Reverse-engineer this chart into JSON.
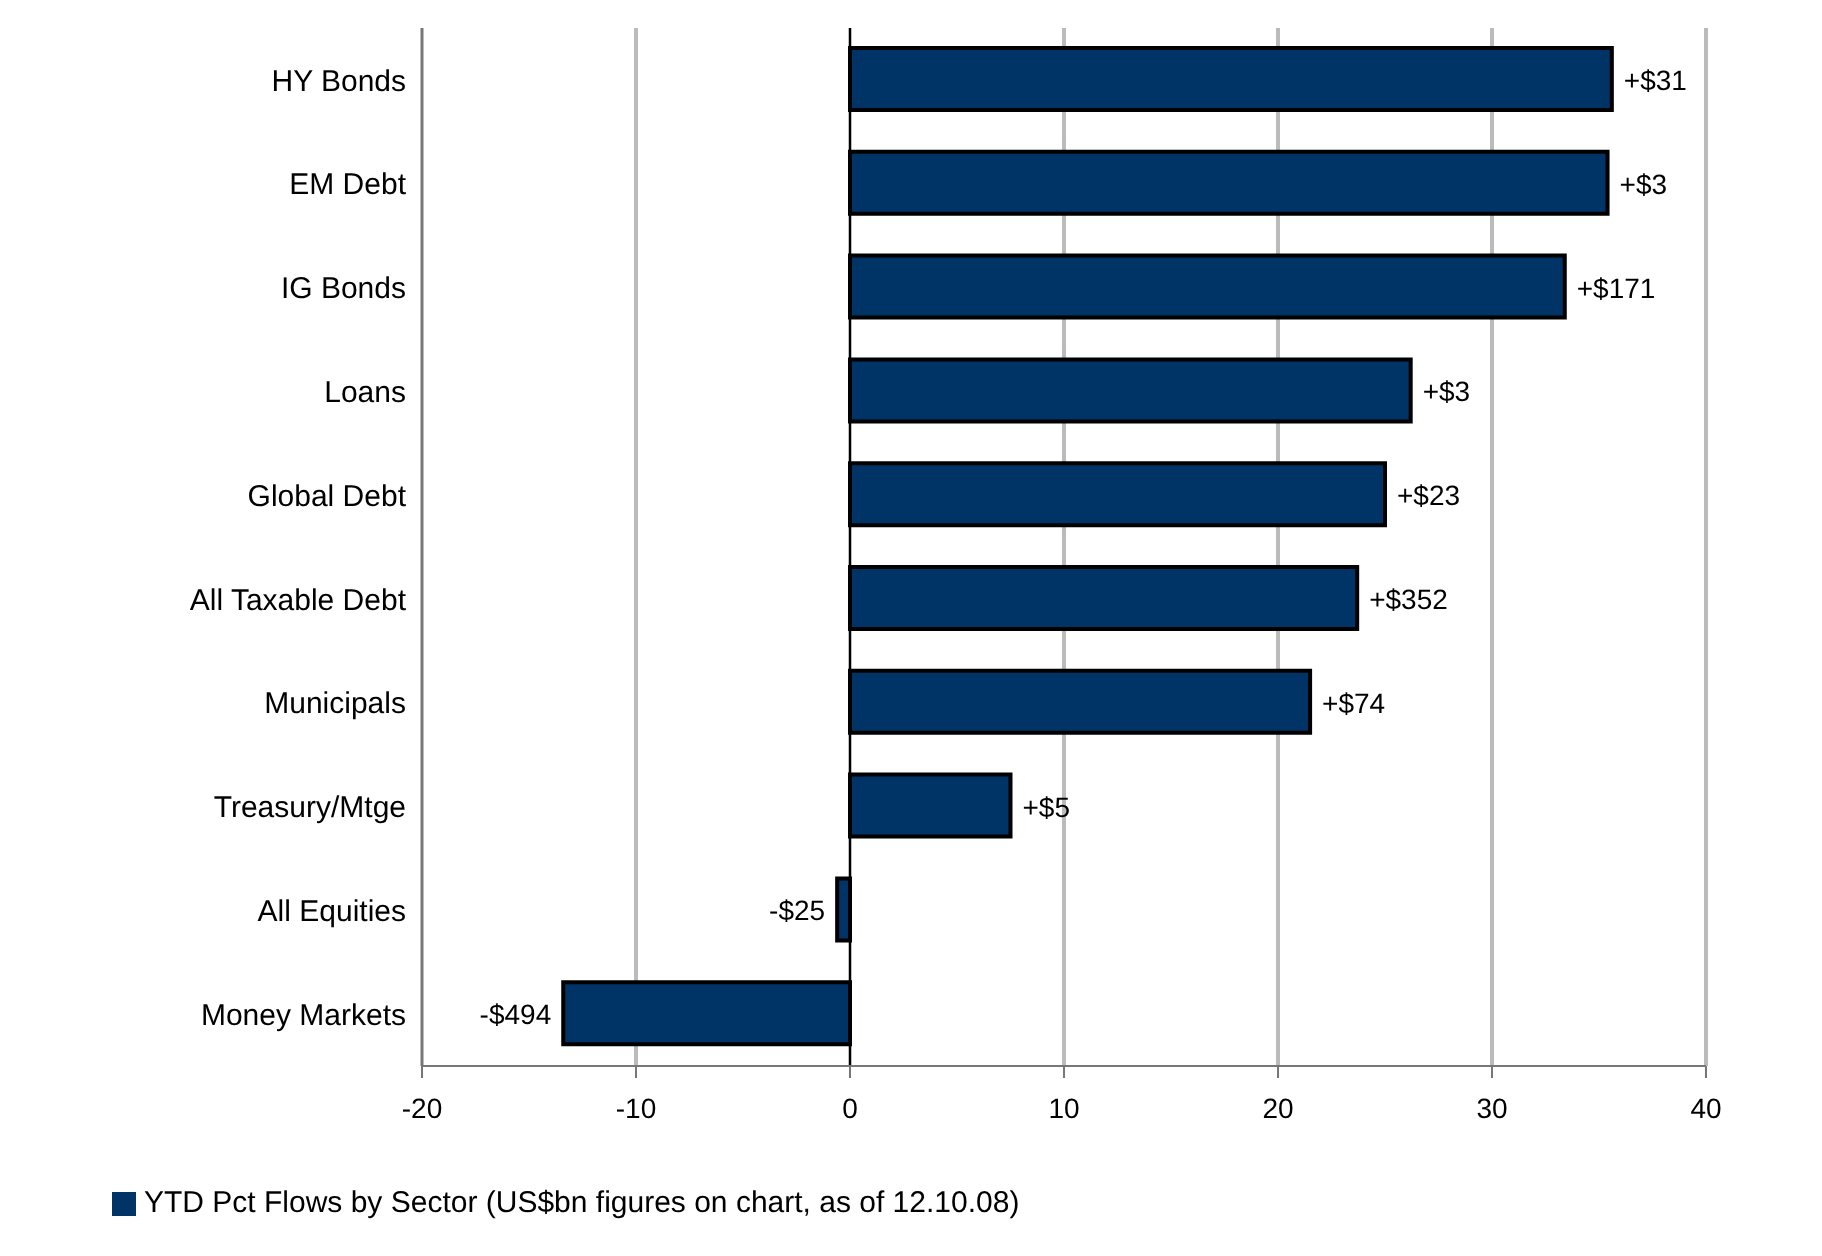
{
  "chart_data": {
    "type": "bar",
    "orientation": "horizontal",
    "categories": [
      "HY Bonds",
      "EM Debt",
      "IG Bonds",
      "Loans",
      "Global Debt",
      "All Taxable Debt",
      "Municipals",
      "Treasury/Mtge",
      "All Equities",
      "Money Markets"
    ],
    "series": [
      {
        "name": "YTD Pct Flows by Sector (US$bn figures on chart, as of 12.10.08)",
        "color": "#003366",
        "values": [
          35.6,
          35.4,
          33.4,
          26.2,
          25.0,
          23.7,
          21.5,
          7.5,
          -0.6,
          -13.4
        ]
      }
    ],
    "annotations": [
      {
        "text": "+$31",
        "x": 35.6,
        "y": "HY Bonds"
      },
      {
        "text": "+$3",
        "x": 35.4,
        "y": "EM Debt"
      },
      {
        "text": "+$171",
        "x": 33.4,
        "y": "IG Bonds"
      },
      {
        "text": "+$3",
        "x": 26.2,
        "y": "Loans"
      },
      {
        "text": "+$23",
        "x": 25.0,
        "y": "Global Debt"
      },
      {
        "text": "+$352",
        "x": 23.7,
        "y": "All Taxable Debt"
      },
      {
        "text": "+$74",
        "x": 21.5,
        "y": "Municipals"
      },
      {
        "text": "+$5",
        "x": 7.5,
        "y": "Treasury/Mtge"
      },
      {
        "text": "-$25",
        "x": -0.6,
        "y": "All Equities"
      },
      {
        "text": "-$494",
        "x": -13.4,
        "y": "Money Markets"
      }
    ],
    "xlim": [
      -20,
      40
    ],
    "xticks": [
      -20,
      -10,
      0,
      10,
      20,
      30,
      40
    ],
    "grid": "x",
    "legend": "bottom left"
  }
}
